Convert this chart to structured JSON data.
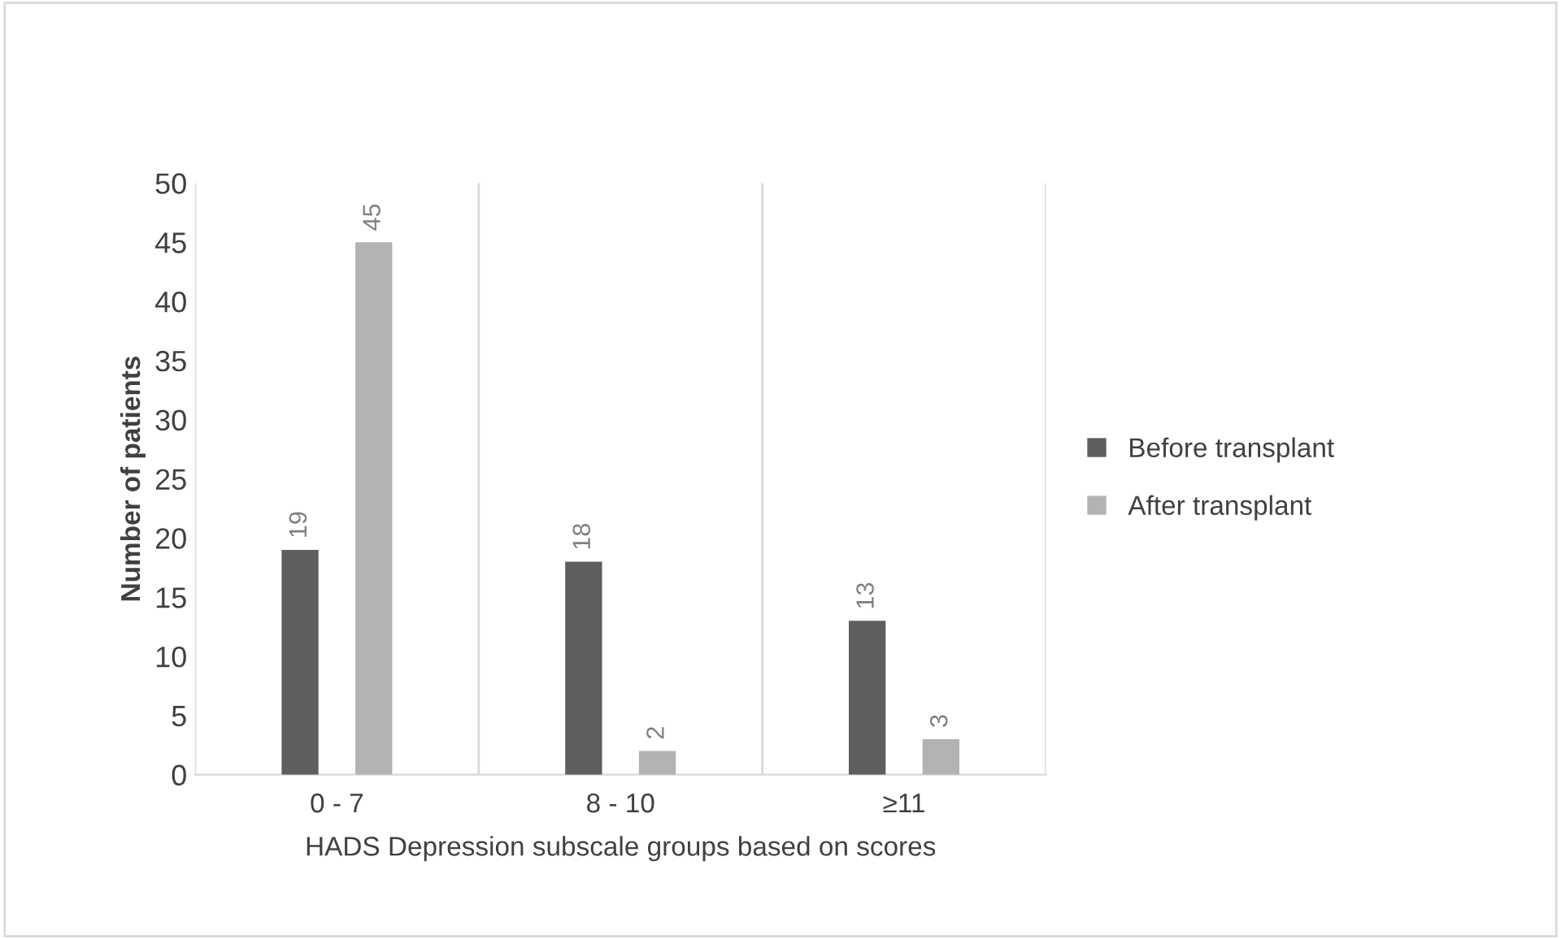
{
  "chart_data": {
    "type": "bar",
    "xlabel": "HADS Depression subscale groups based on scores",
    "ylabel": "Number of patients",
    "categories": [
      "0 - 7",
      "8 - 10",
      "≥11"
    ],
    "series": [
      {
        "name": "Before transplant",
        "color": "#5e5e5e",
        "values": [
          19,
          18,
          13
        ]
      },
      {
        "name": "After transplant",
        "color": "#b3b3b3",
        "values": [
          45,
          2,
          3
        ]
      }
    ],
    "ylim": [
      0,
      50
    ],
    "yticks": [
      0,
      5,
      10,
      15,
      20,
      25,
      30,
      35,
      40,
      45,
      50
    ],
    "grid": "x",
    "legend": "right",
    "data_labels": true
  }
}
